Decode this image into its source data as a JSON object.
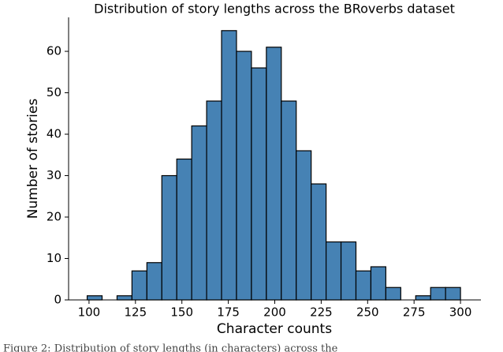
{
  "chart_data": {
    "type": "histogram",
    "title": "Distribution of story lengths across the BRoverbs dataset",
    "x_label": "Character counts",
    "y_label": "Number of stories",
    "caption": "Figure 2: Distribution of story lengths (in characters) across the",
    "bins": [
      99,
      107.04,
      115.08,
      123.12,
      131.16,
      139.2,
      147.24,
      155.28,
      163.32,
      171.36,
      179.4,
      187.44,
      195.48,
      203.52,
      211.56,
      219.6,
      227.64,
      235.68,
      243.72,
      251.76,
      259.8,
      267.84,
      275.88,
      283.92,
      291.96,
      300
    ],
    "values": [
      1,
      0,
      1,
      7,
      9,
      30,
      34,
      42,
      48,
      65,
      60,
      56,
      61,
      48,
      36,
      28,
      14,
      14,
      7,
      8,
      3,
      0,
      1,
      3,
      3
    ],
    "color": "#4682b4",
    "edgecolor": "#000000",
    "xlim": [
      89,
      311
    ],
    "ylim": [
      0,
      68.2
    ],
    "xticks": [
      100,
      125,
      150,
      175,
      200,
      225,
      250,
      275,
      300
    ],
    "yticks": [
      0,
      10,
      20,
      30,
      40,
      50,
      60
    ]
  }
}
